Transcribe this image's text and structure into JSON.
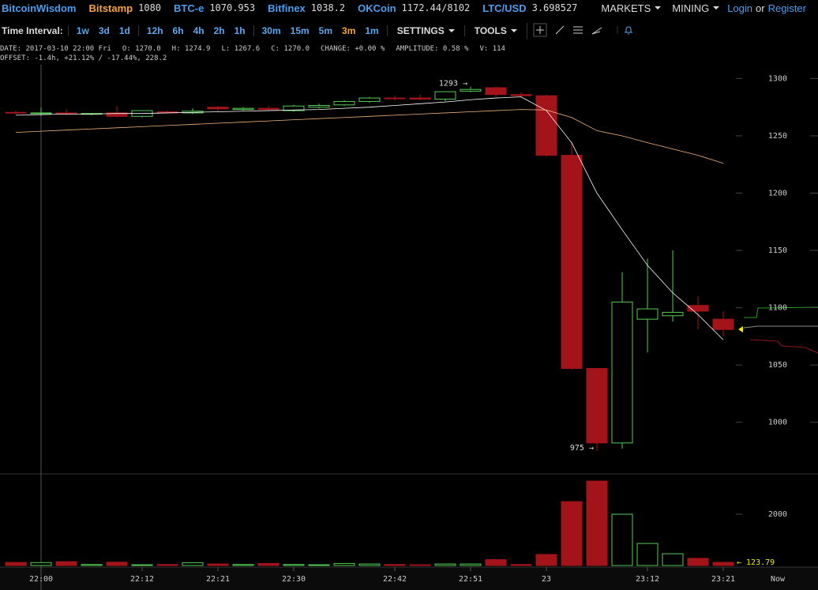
{
  "header": {
    "brand": "BitcoinWisdom",
    "selected_ticker": "Bitstamp",
    "tickers": [
      {
        "name": "Bitstamp",
        "price": "1080"
      },
      {
        "name": "BTC-e",
        "price": "1070.953"
      },
      {
        "name": "Bitfinex",
        "price": "1038.2"
      },
      {
        "name": "OKCoin",
        "price": "1172.44/8102"
      },
      {
        "name": "LTC/USD",
        "price": "3.698527"
      }
    ],
    "menus": [
      "MARKETS",
      "MINING"
    ],
    "login": "Login",
    "or": "or",
    "register": "Register"
  },
  "toolbar": {
    "label": "Time Interval:",
    "interval_groups": [
      [
        "1w",
        "3d",
        "1d"
      ],
      [
        "12h",
        "6h",
        "4h",
        "2h",
        "1h"
      ],
      [
        "30m",
        "15m",
        "5m",
        "3m",
        "1m"
      ]
    ],
    "selected_interval": "3m",
    "menus": [
      "SETTINGS",
      "TOOLS"
    ]
  },
  "info": {
    "rows": [
      [
        {
          "label": "DATE:",
          "value": "2017-03-10 22:00 Fri"
        },
        {
          "label": "O:",
          "value": "1270.0"
        },
        {
          "label": "H:",
          "value": "1274.9"
        },
        {
          "label": "L:",
          "value": "1267.6"
        },
        {
          "label": "C:",
          "value": "1270.0"
        },
        {
          "label": "CHANGE:",
          "value": "+0.00 %"
        },
        {
          "label": "AMPLITUDE:",
          "value": "0.58 %"
        },
        {
          "label": "V:",
          "value": "114"
        }
      ],
      [
        {
          "label": "OFFSET:",
          "value": "-1.4h, +21.12% / -17.44%, 228.2"
        }
      ]
    ]
  },
  "chart_data": {
    "type": "candlestick",
    "categories": [
      null,
      "22:00",
      null,
      null,
      null,
      "22:12",
      null,
      null,
      "22:21",
      null,
      null,
      "22:30",
      null,
      null,
      null,
      "22:42",
      null,
      null,
      "22:51",
      null,
      null,
      "23",
      null,
      null,
      null,
      "23:12",
      null,
      null,
      "23:21"
    ],
    "open": [
      1270.5,
      1270,
      1270,
      1269,
      1270,
      1267,
      1271,
      1270,
      1275,
      1273,
      1274,
      1272,
      1275,
      1277,
      1280,
      1283,
      1283,
      1282,
      1289,
      1292,
      1286,
      1285,
      1233,
      1047,
      982,
      1090,
      1093,
      1102,
      1090
    ],
    "high": [
      1272,
      1274.9,
      1273,
      1270,
      1276,
      1272,
      1272,
      1274,
      1276,
      1275,
      1276,
      1277,
      1278,
      1281,
      1284,
      1285,
      1286,
      1289,
      1293,
      1293,
      1288,
      1286,
      1245,
      1047,
      1131,
      1143,
      1150,
      1110,
      1097
    ],
    "low": [
      1269,
      1267.6,
      1268,
      1268,
      1266,
      1266,
      1270,
      1269,
      1271,
      1272,
      1272,
      1271,
      1274,
      1276,
      1279,
      1281,
      1281,
      1280,
      1288,
      1284,
      1283,
      1232,
      1046,
      975,
      977,
      1061,
      1088,
      1081,
      1075
    ],
    "close": [
      1270,
      1270,
      1269,
      1269.5,
      1267,
      1272,
      1270,
      1271.5,
      1273.5,
      1274,
      1273,
      1276,
      1276.5,
      1280,
      1283,
      1282.5,
      1282,
      1288.5,
      1290.5,
      1286,
      1285,
      1233,
      1047,
      982,
      1105,
      1099,
      1096,
      1097,
      1081
    ],
    "up_color": "#55cc55",
    "down_color": "#a3141a",
    "ylim": [
      955,
      1312
    ],
    "yticks": [
      1000,
      1050,
      1100,
      1150,
      1200,
      1250,
      1300
    ],
    "moving_averages": [
      {
        "color": "#ffffff",
        "values": [
          1268,
          1268.5,
          1269,
          1269,
          1269.5,
          1269.5,
          1270,
          1270.5,
          1271,
          1271.5,
          1272,
          1272.5,
          1273,
          1274,
          1275,
          1276.5,
          1278,
          1279.5,
          1281.5,
          1283,
          1284,
          1272,
          1244,
          1200,
          1168,
          1137,
          1113,
          1094,
          1072
        ]
      },
      {
        "color": "#f2b27a",
        "values": [
          1253,
          1254,
          1255,
          1256,
          1257,
          1258,
          1259,
          1260,
          1261,
          1262,
          1263,
          1264,
          1265,
          1266,
          1267,
          1268,
          1269,
          1270,
          1271,
          1272,
          1273,
          1272.5,
          1266,
          1254.5,
          1250,
          1244,
          1238.5,
          1233,
          1226
        ]
      }
    ],
    "annotations": [
      {
        "value": 1293,
        "label": "1293 →"
      },
      {
        "value": 975,
        "label": "975 →"
      }
    ],
    "volume": {
      "values": [
        120,
        114,
        150,
        40,
        130,
        30,
        40,
        110,
        60,
        40,
        80,
        40,
        30,
        80,
        60,
        40,
        30,
        60,
        60,
        230,
        40,
        430,
        2490,
        3290,
        2000,
        860,
        460,
        280,
        123.79
      ],
      "ylim": [
        0,
        3570
      ],
      "yticks": [
        2000
      ],
      "annotation": {
        "value": 123.79,
        "label": "← 123.79"
      }
    },
    "now_label": "Now"
  }
}
